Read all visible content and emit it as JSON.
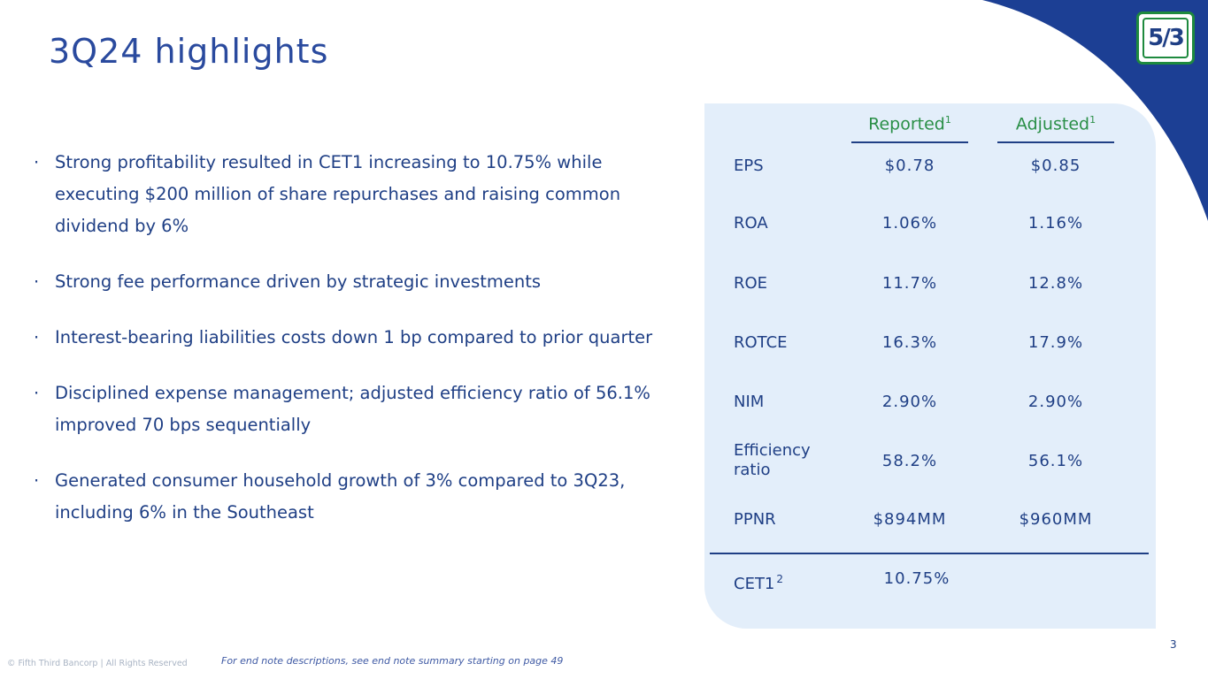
{
  "slide": {
    "title": "3Q24 highlights",
    "logo_text": "5/3",
    "page_number": "3",
    "copyright": "© Fifth Third Bancorp | All Rights Reserved",
    "endnote": "For end note descriptions, see end note summary starting on page 49"
  },
  "bullets": [
    "Strong profitability resulted in CET1 increasing to 10.75% while executing $200 million of share repurchases and raising common dividend by 6%",
    "Strong fee performance driven by strategic investments",
    "Interest-bearing liabilities costs down 1 bp compared to prior quarter",
    "Disciplined expense management; adjusted efficiency ratio of 56.1% improved 70 bps sequentially",
    "Generated consumer household growth of 3% compared to 3Q23, including 6% in the Southeast"
  ],
  "bullet_symbol": "·",
  "table": {
    "headers": [
      {
        "label": "Reported",
        "sup": "1"
      },
      {
        "label": "Adjusted",
        "sup": "1"
      }
    ],
    "rows": [
      {
        "label": "EPS",
        "reported": "$0.78",
        "adjusted": "$0.85"
      },
      {
        "label": "ROA",
        "reported": "1.06%",
        "adjusted": "1.16%"
      },
      {
        "label": "ROE",
        "reported": "11.7%",
        "adjusted": "12.8%"
      },
      {
        "label": "ROTCE",
        "reported": "16.3%",
        "adjusted": "17.9%"
      },
      {
        "label": "NIM",
        "reported": "2.90%",
        "adjusted": "2.90%"
      },
      {
        "label": "Efficiency ratio",
        "reported": "58.2%",
        "adjusted": "56.1%"
      },
      {
        "label": "PPNR",
        "reported": "$894MM",
        "adjusted": "$960MM"
      }
    ],
    "cet1": {
      "label": "CET1",
      "sup": "2",
      "value": "10.75%"
    }
  },
  "colors": {
    "primary_blue": "#1f3f85",
    "dark_blue": "#1c3f94",
    "green": "#2a8f47",
    "panel_bg": "#e3eefa"
  }
}
